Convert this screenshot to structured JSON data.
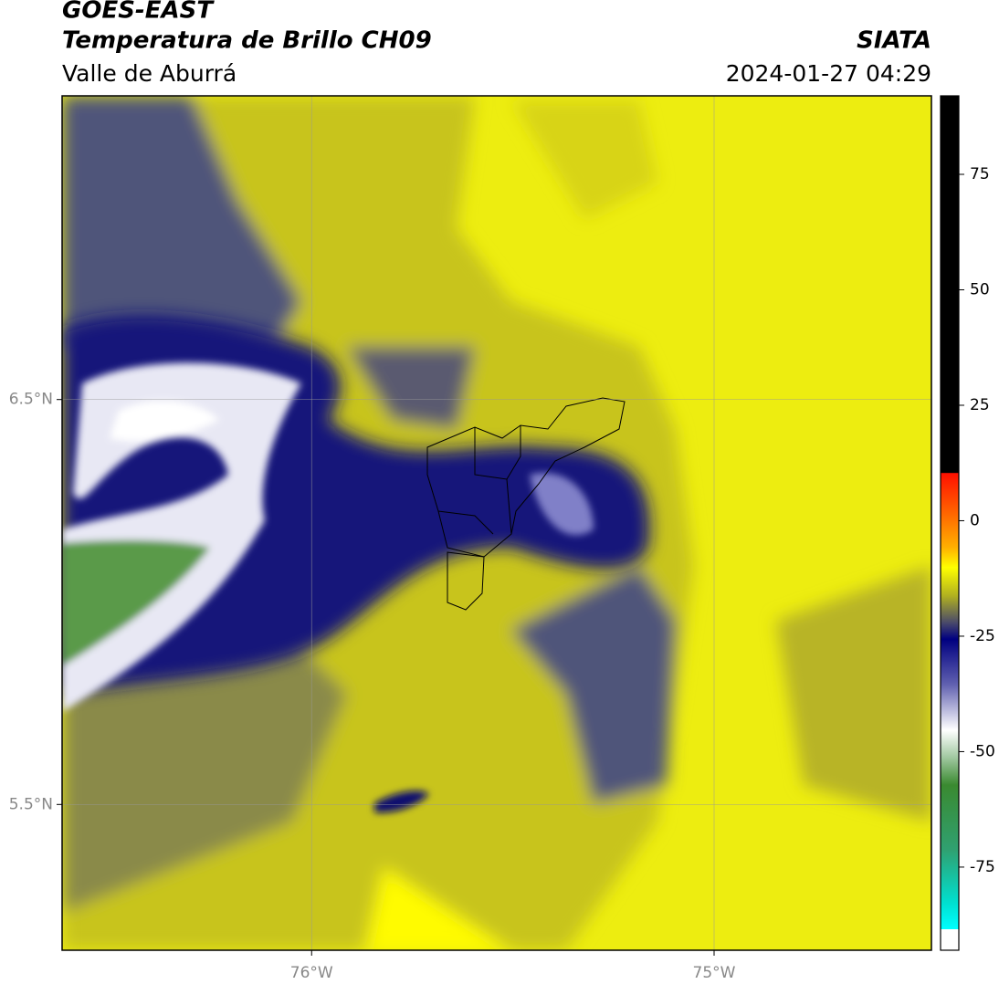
{
  "header": {
    "title": "GOES-EAST",
    "subtitle": "Temperatura de Brillo CH09",
    "region": "Valle de Aburrá",
    "source": "SIATA",
    "datetime": "2024-01-27 04:29"
  },
  "map": {
    "xlim": [
      -76.62,
      -74.46
    ],
    "ylim": [
      5.14,
      7.25
    ],
    "lon_ticks": [
      {
        "value": -76,
        "label": "76°W"
      },
      {
        "value": -75,
        "label": "75°W"
      }
    ],
    "lat_ticks": [
      {
        "value": 6.5,
        "label": "6.5°N"
      },
      {
        "value": 5.5,
        "label": "5.5°N"
      }
    ],
    "grid": true
  },
  "colorbar": {
    "lim": [
      -93,
      92
    ],
    "ticks": [
      75,
      50,
      25,
      0,
      -25,
      -50,
      -75
    ]
  }
}
